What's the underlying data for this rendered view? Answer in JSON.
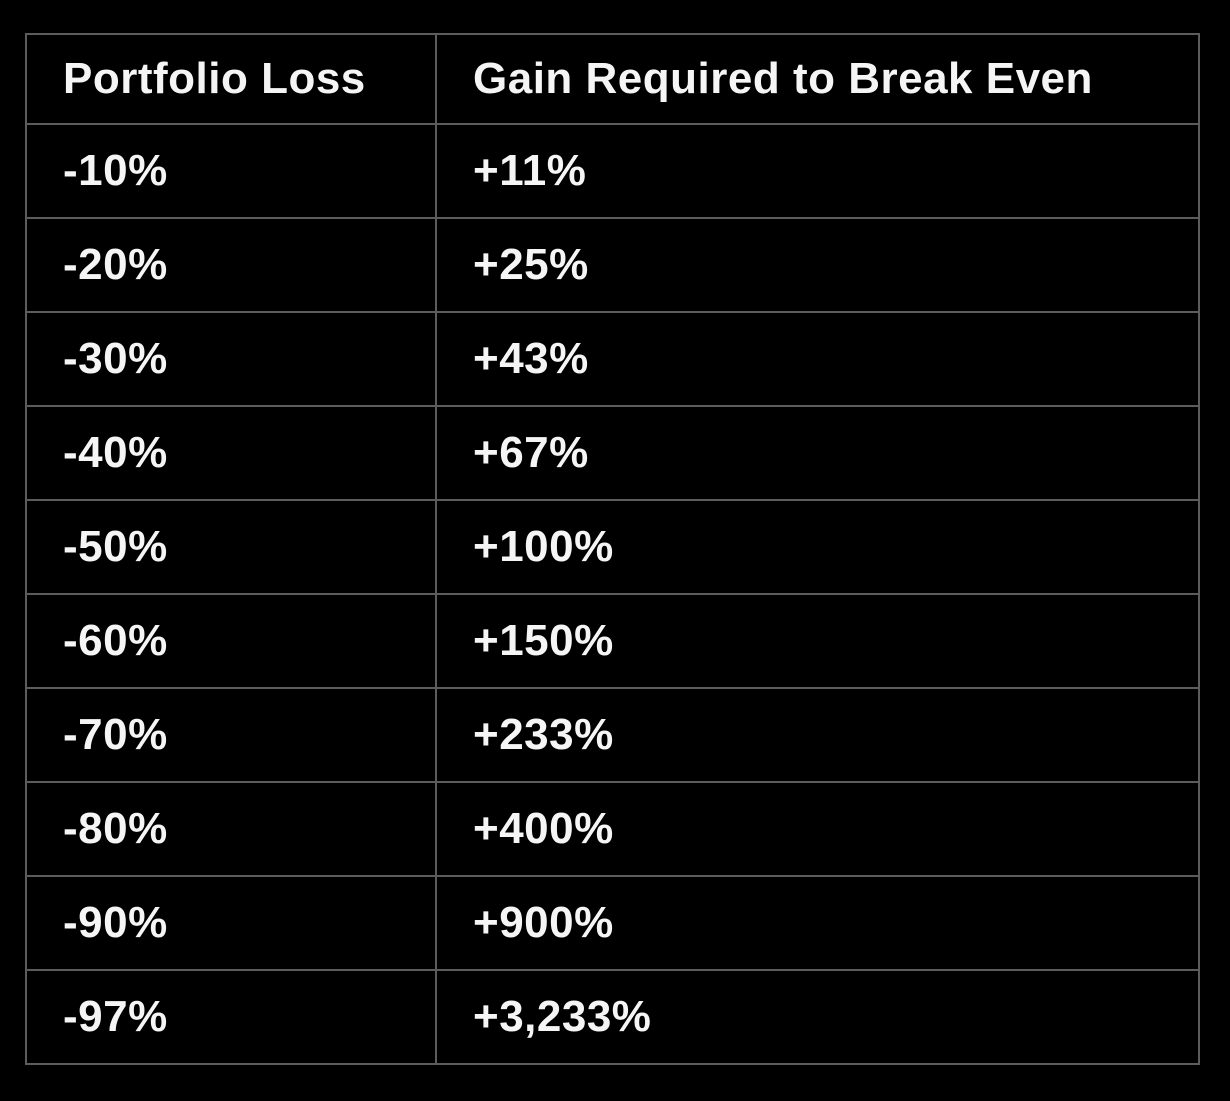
{
  "colors": {
    "background": "#000000",
    "cell_background": "#000000",
    "border": "#5c5c5c",
    "text": "#f5f5f5"
  },
  "table": {
    "headers": [
      "Portfolio Loss",
      "Gain Required to Break Even"
    ],
    "rows": [
      [
        "-10%",
        "+11%"
      ],
      [
        "-20%",
        "+25%"
      ],
      [
        "-30%",
        "+43%"
      ],
      [
        "-40%",
        "+67%"
      ],
      [
        "-50%",
        "+100%"
      ],
      [
        "-60%",
        "+150%"
      ],
      [
        "-70%",
        "+233%"
      ],
      [
        "-80%",
        "+400%"
      ],
      [
        "-90%",
        "+900%"
      ],
      [
        "-97%",
        "+3,233%"
      ]
    ]
  },
  "chart_data": {
    "type": "table",
    "title": "",
    "columns": [
      "Portfolio Loss",
      "Gain Required to Break Even"
    ],
    "rows": [
      {
        "portfolio_loss": "-10%",
        "gain_required": "+11%"
      },
      {
        "portfolio_loss": "-20%",
        "gain_required": "+25%"
      },
      {
        "portfolio_loss": "-30%",
        "gain_required": "+43%"
      },
      {
        "portfolio_loss": "-40%",
        "gain_required": "+67%"
      },
      {
        "portfolio_loss": "-50%",
        "gain_required": "+100%"
      },
      {
        "portfolio_loss": "-60%",
        "gain_required": "+150%"
      },
      {
        "portfolio_loss": "-70%",
        "gain_required": "+233%"
      },
      {
        "portfolio_loss": "-80%",
        "gain_required": "+400%"
      },
      {
        "portfolio_loss": "-90%",
        "gain_required": "+900%"
      },
      {
        "portfolio_loss": "-97%",
        "gain_required": "+3,233%"
      }
    ],
    "layout": {
      "grid": true,
      "theme": "dark",
      "header_row": true
    }
  }
}
